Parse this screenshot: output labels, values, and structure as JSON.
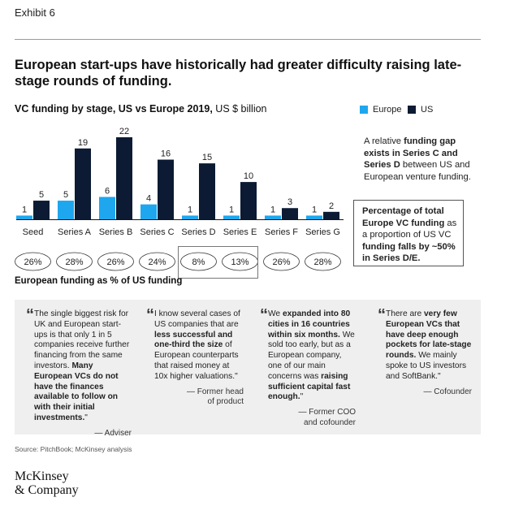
{
  "header": {
    "exhibit": "Exhibit 6",
    "title": "European start-ups have historically had greater difficulty raising late-stage rounds of funding."
  },
  "colors": {
    "europe": "#1ea7ee",
    "us": "#0c1b33"
  },
  "chart_data": {
    "type": "bar",
    "title_bold": "VC funding by stage, US vs Europe 2019,",
    "title_unit": " US $ billion",
    "categories": [
      "Seed",
      "Series A",
      "Series B",
      "Series C",
      "Series D",
      "Series E",
      "Series F",
      "Series G"
    ],
    "series": [
      {
        "name": "Europe",
        "values": [
          1,
          5,
          6,
          4,
          1,
          1,
          1,
          1
        ]
      },
      {
        "name": "US",
        "values": [
          5,
          19,
          22,
          16,
          15,
          10,
          3,
          2
        ]
      }
    ],
    "europe_pct_of_us": [
      "26%",
      "28%",
      "26%",
      "24%",
      "8%",
      "13%",
      "26%",
      "28%"
    ],
    "highlighted_categories": [
      "Series D",
      "Series E"
    ],
    "pct_label": "European funding as % of US funding",
    "ylim": [
      0,
      22
    ]
  },
  "notes": {
    "gap_parts": [
      {
        "text": "A relative ",
        "bold": false
      },
      {
        "text": "funding gap exists in Series C and Series D",
        "bold": true
      },
      {
        "text": " between US and European venture funding.",
        "bold": false
      }
    ],
    "share_parts": [
      {
        "text": "Percentage of total Europe VC funding",
        "bold": true
      },
      {
        "text": " as a proportion of US VC ",
        "bold": false
      },
      {
        "text": "funding falls by ~50% in Series D/E.",
        "bold": true
      }
    ]
  },
  "quotes": [
    {
      "parts": [
        {
          "text": "The single biggest risk for UK and European start-ups is that only 1 in 5 companies receive further financing from the same investors. ",
          "bold": false
        },
        {
          "text": "Many European VCs do not have the finances available to follow on with their initial investments.",
          "bold": true
        },
        {
          "text": "\"",
          "bold": false
        }
      ],
      "attribution": "— Adviser"
    },
    {
      "parts": [
        {
          "text": "I know several cases of US companies that are ",
          "bold": false
        },
        {
          "text": "less successful and one-third the size",
          "bold": true
        },
        {
          "text": " of European counterparts that raised money at 10x higher valuations.\"",
          "bold": false
        }
      ],
      "attribution": "— Former head of product"
    },
    {
      "parts": [
        {
          "text": "We ",
          "bold": false
        },
        {
          "text": "expanded into 80 cities in 16 countries within six months.",
          "bold": true
        },
        {
          "text": " We sold too early, but as a European company, one of our main concerns was ",
          "bold": false
        },
        {
          "text": "raising sufficient capital fast enough.",
          "bold": true
        },
        {
          "text": "\"",
          "bold": false
        }
      ],
      "attribution": "— Former COO and cofounder"
    },
    {
      "parts": [
        {
          "text": "There are ",
          "bold": false
        },
        {
          "text": "very few European VCs that have deep enough pockets for late-stage rounds.",
          "bold": true
        },
        {
          "text": " We mainly spoke to US investors and SoftBank.\"",
          "bold": false
        }
      ],
      "attribution": "— Cofounder"
    }
  ],
  "footer": {
    "source": "Source: PitchBook; McKinsey analysis",
    "logo_line1": "McKinsey",
    "logo_line2": "& Company"
  }
}
